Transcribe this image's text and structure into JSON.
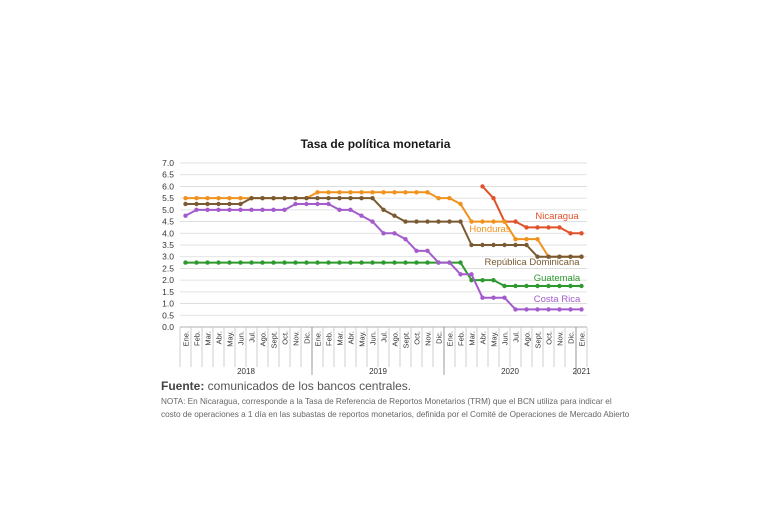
{
  "chart_data": {
    "type": "line",
    "title": "Tasa de política monetaria",
    "ylim": [
      0,
      7
    ],
    "yticks": [
      "0.0",
      "0.5",
      "1.0",
      "1.5",
      "2.0",
      "2.5",
      "3.0",
      "3.5",
      "4.0",
      "4.5",
      "5.0",
      "5.5",
      "6.0",
      "6.5",
      "7.0"
    ],
    "month_labels": [
      "Ene.",
      "Feb.",
      "Mar.",
      "Abr.",
      "May.",
      "Jun.",
      "Jul.",
      "Ago.",
      "Sept.",
      "Oct.",
      "Nov.",
      "Dic.",
      "Ene.",
      "Feb.",
      "Mar.",
      "Abr.",
      "May.",
      "Jun.",
      "Jul.",
      "Ago.",
      "Sept.",
      "Oct.",
      "Nov.",
      "Dic.",
      "Ene.",
      "Feb.",
      "Mar.",
      "Abr.",
      "May.",
      "Jun.",
      "Jul.",
      "Ago.",
      "Sept.",
      "Oct.",
      "Nov.",
      "Dic.",
      "Ene."
    ],
    "year_labels": [
      "2018",
      "2019",
      "2020",
      "2021"
    ],
    "grid": true,
    "series": [
      {
        "name": "Nicaragua",
        "color": "#e0522b",
        "start": 27,
        "values": [
          6.0,
          5.5,
          4.5,
          4.5,
          4.25,
          4.25,
          4.25,
          4.25,
          4.0,
          4.0
        ]
      },
      {
        "name": "Honduras",
        "color": "#f0921e",
        "start": 0,
        "values": [
          5.5,
          5.5,
          5.5,
          5.5,
          5.5,
          5.5,
          5.5,
          5.5,
          5.5,
          5.5,
          5.5,
          5.5,
          5.75,
          5.75,
          5.75,
          5.75,
          5.75,
          5.75,
          5.75,
          5.75,
          5.75,
          5.75,
          5.75,
          5.5,
          5.5,
          5.25,
          4.5,
          4.5,
          4.5,
          4.5,
          3.75,
          3.75,
          3.75,
          3.0,
          3.0,
          3.0,
          3.0
        ]
      },
      {
        "name": "República Dominicana",
        "color": "#7a5a32",
        "start": 0,
        "values": [
          5.25,
          5.25,
          5.25,
          5.25,
          5.25,
          5.25,
          5.5,
          5.5,
          5.5,
          5.5,
          5.5,
          5.5,
          5.5,
          5.5,
          5.5,
          5.5,
          5.5,
          5.5,
          5.0,
          4.75,
          4.5,
          4.5,
          4.5,
          4.5,
          4.5,
          4.5,
          3.5,
          3.5,
          3.5,
          3.5,
          3.5,
          3.5,
          3.0,
          3.0,
          3.0,
          3.0,
          3.0
        ]
      },
      {
        "name": "Guatemala",
        "color": "#2e9a2e",
        "start": 0,
        "values": [
          2.75,
          2.75,
          2.75,
          2.75,
          2.75,
          2.75,
          2.75,
          2.75,
          2.75,
          2.75,
          2.75,
          2.75,
          2.75,
          2.75,
          2.75,
          2.75,
          2.75,
          2.75,
          2.75,
          2.75,
          2.75,
          2.75,
          2.75,
          2.75,
          2.75,
          2.75,
          2.0,
          2.0,
          2.0,
          1.75,
          1.75,
          1.75,
          1.75,
          1.75,
          1.75,
          1.75,
          1.75
        ]
      },
      {
        "name": "Costa Rica",
        "color": "#a45ccc",
        "start": 0,
        "values": [
          4.75,
          5.0,
          5.0,
          5.0,
          5.0,
          5.0,
          5.0,
          5.0,
          5.0,
          5.0,
          5.25,
          5.25,
          5.25,
          5.25,
          5.0,
          5.0,
          4.75,
          4.5,
          4.0,
          4.0,
          3.75,
          3.25,
          3.25,
          2.75,
          2.75,
          2.25,
          2.25,
          1.25,
          1.25,
          1.25,
          0.75,
          0.75,
          0.75,
          0.75,
          0.75,
          0.75,
          0.75
        ]
      }
    ]
  },
  "footer": {
    "source_label": "Fuente:",
    "source_text": " comunicados de los bancos centrales.",
    "note": "NOTA: En Nicaragua, corresponde a la Tasa de Referencia de Reportos Monetarios (TRM) que el BCN utiliza para indicar el costo de operaciones a 1 día en las subastas de reportos monetarios, definida por el Comité de Operaciones de Mercado Abierto"
  }
}
